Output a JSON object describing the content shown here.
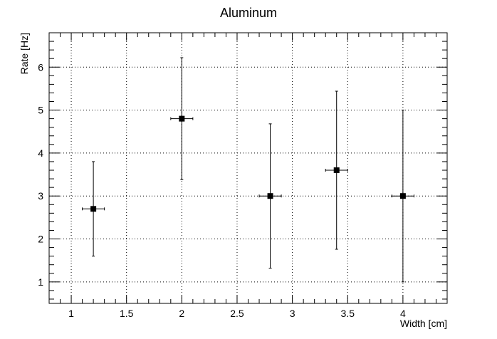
{
  "chart_data": {
    "type": "scatter",
    "title": "Aluminum",
    "xlabel": "Width [cm]",
    "ylabel": "Rate [Hz]",
    "xlim": [
      0.8,
      4.4
    ],
    "ylim": [
      0.5,
      6.8
    ],
    "grid": true,
    "x_ticks": [
      "1",
      "1.5",
      "2",
      "2.5",
      "3",
      "3.5",
      "4"
    ],
    "y_ticks": [
      "1",
      "2",
      "3",
      "4",
      "5",
      "6"
    ],
    "points": [
      {
        "x": 1.2,
        "y": 2.7,
        "x_err": 0.1,
        "y_err": 1.1
      },
      {
        "x": 2.0,
        "y": 4.8,
        "x_err": 0.1,
        "y_err": 1.42
      },
      {
        "x": 2.8,
        "y": 3.0,
        "x_err": 0.1,
        "y_err": 1.68
      },
      {
        "x": 3.4,
        "y": 3.6,
        "x_err": 0.1,
        "y_err": 1.84
      },
      {
        "x": 4.0,
        "y": 3.0,
        "x_err": 0.1,
        "y_err": 2.0
      }
    ]
  }
}
